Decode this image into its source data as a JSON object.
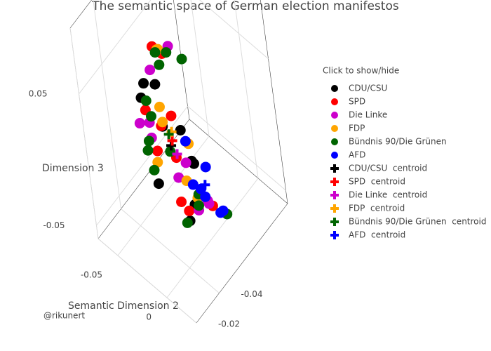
{
  "chart_data": {
    "type": "scatter3d",
    "title": "The semantic space of German election manifestos",
    "xlabel": "Semantic Dimension 2",
    "zlabel": "Dimension 3",
    "xlim": [
      -0.07,
      0.03
    ],
    "xticks": [
      -0.05,
      0
    ],
    "ylim": [
      -0.02,
      -0.1
    ],
    "yticks": [
      -0.04,
      -0.02
    ],
    "zlim": [
      -0.06,
      0.1
    ],
    "zticks": [
      0.05,
      -0.05
    ],
    "grid": true,
    "legend_title": "Click to show/hide",
    "credit": "@rikunert",
    "series": [
      {
        "name": "CDU/CSU",
        "color": "#000000",
        "symbol": "circle",
        "x": [
          -0.03,
          -0.025,
          -0.01,
          0,
          -0.035,
          -0.015,
          -0.02,
          -0.005,
          -0.028,
          -0.012
        ],
        "y": [
          -0.04,
          -0.05,
          -0.06,
          -0.045,
          -0.055,
          -0.035,
          -0.065,
          -0.05,
          -0.042,
          -0.058
        ],
        "z": [
          0.05,
          0.02,
          -0.01,
          -0.03,
          0.04,
          0.0,
          -0.02,
          0.03,
          0.06,
          -0.04
        ]
      },
      {
        "name": "SPD",
        "color": "#ff0000",
        "symbol": "circle",
        "x": [
          -0.022,
          -0.008,
          -0.032,
          -0.018,
          0.002,
          -0.027,
          -0.013,
          -0.004,
          -0.036,
          -0.02
        ],
        "y": [
          -0.048,
          -0.038,
          -0.062,
          -0.052,
          -0.044,
          -0.058,
          -0.036,
          -0.066,
          -0.046,
          -0.054
        ],
        "z": [
          0.085,
          0.045,
          0.01,
          -0.035,
          -0.02,
          0.065,
          0.025,
          -0.045,
          0.03,
          -0.005
        ]
      },
      {
        "name": "Die Linke",
        "color": "#cc00cc",
        "symbol": "circle",
        "x": [
          -0.016,
          -0.03,
          -0.006,
          -0.024,
          0.004,
          -0.011,
          -0.034,
          -0.002,
          -0.019,
          -0.026
        ],
        "y": [
          -0.056,
          -0.044,
          -0.064,
          -0.04,
          -0.05,
          -0.068,
          -0.052,
          -0.042,
          -0.06,
          -0.034
        ],
        "z": [
          0.08,
          0.015,
          -0.04,
          0.035,
          -0.025,
          -0.05,
          0.055,
          0.005,
          -0.015,
          0.04
        ]
      },
      {
        "name": "FDP",
        "color": "#ffa500",
        "symbol": "circle",
        "x": [
          -0.014,
          -0.028,
          -0.009,
          -0.021,
          -0.001,
          -0.033,
          -0.017,
          -0.007
        ],
        "y": [
          -0.046,
          -0.056,
          -0.04,
          -0.06,
          -0.052,
          -0.048,
          -0.064,
          -0.038
        ],
        "z": [
          0.09,
          0.07,
          0.045,
          -0.03,
          0.02,
          -0.01,
          -0.045,
          0.06
        ]
      },
      {
        "name": "Bündnis 90/Die Grünen",
        "color": "#006400",
        "symbol": "circle",
        "x": [
          -0.04,
          -0.01,
          -0.025,
          0.005,
          -0.015,
          -0.035,
          -0.005,
          -0.02,
          -0.03,
          0,
          -0.012,
          -0.038,
          -0.008,
          -0.023
        ],
        "y": [
          -0.05,
          -0.042,
          -0.06,
          -0.07,
          -0.036,
          -0.046,
          -0.058,
          -0.066,
          -0.04,
          -0.054,
          -0.03,
          -0.062,
          -0.048,
          -0.052
        ],
        "z": [
          0.03,
          0.095,
          0.065,
          -0.05,
          0.05,
          -0.015,
          0.075,
          -0.055,
          0.01,
          -0.02,
          0.04,
          0.045,
          -0.04,
          0.0
        ]
      },
      {
        "name": "AFD",
        "color": "#0000ff",
        "symbol": "circle",
        "x": [
          -0.002,
          0.004,
          -0.008,
          0.001,
          -0.012,
          0.006,
          -0.004
        ],
        "y": [
          -0.06,
          -0.066,
          -0.056,
          -0.07,
          -0.064,
          -0.058,
          -0.052
        ],
        "z": [
          -0.03,
          -0.045,
          -0.02,
          -0.05,
          -0.035,
          0.0,
          0.02
        ]
      },
      {
        "name": "CDU/CSU  centroid",
        "color": "#000000",
        "symbol": "cross",
        "x": [
          -0.018
        ],
        "y": [
          -0.05
        ],
        "z": [
          0.01
        ]
      },
      {
        "name": "SPD  centroid",
        "color": "#ff0000",
        "symbol": "cross",
        "x": [
          -0.016
        ],
        "y": [
          -0.05
        ],
        "z": [
          0.015
        ]
      },
      {
        "name": "Die Linke  centroid",
        "color": "#cc00cc",
        "symbol": "cross",
        "x": [
          -0.014
        ],
        "y": [
          -0.051
        ],
        "z": [
          0.005
        ]
      },
      {
        "name": "FDP  centroid",
        "color": "#ffa500",
        "symbol": "cross",
        "x": [
          -0.017
        ],
        "y": [
          -0.051
        ],
        "z": [
          0.02
        ]
      },
      {
        "name": "Bündnis 90/Die Grünen  centroid",
        "color": "#006400",
        "symbol": "cross",
        "x": [
          -0.019
        ],
        "y": [
          -0.05
        ],
        "z": [
          0.018
        ]
      },
      {
        "name": "AFD  centroid",
        "color": "#0000ff",
        "symbol": "cross",
        "x": [
          -0.002
        ],
        "y": [
          -0.061
        ],
        "z": [
          -0.022
        ]
      }
    ]
  }
}
